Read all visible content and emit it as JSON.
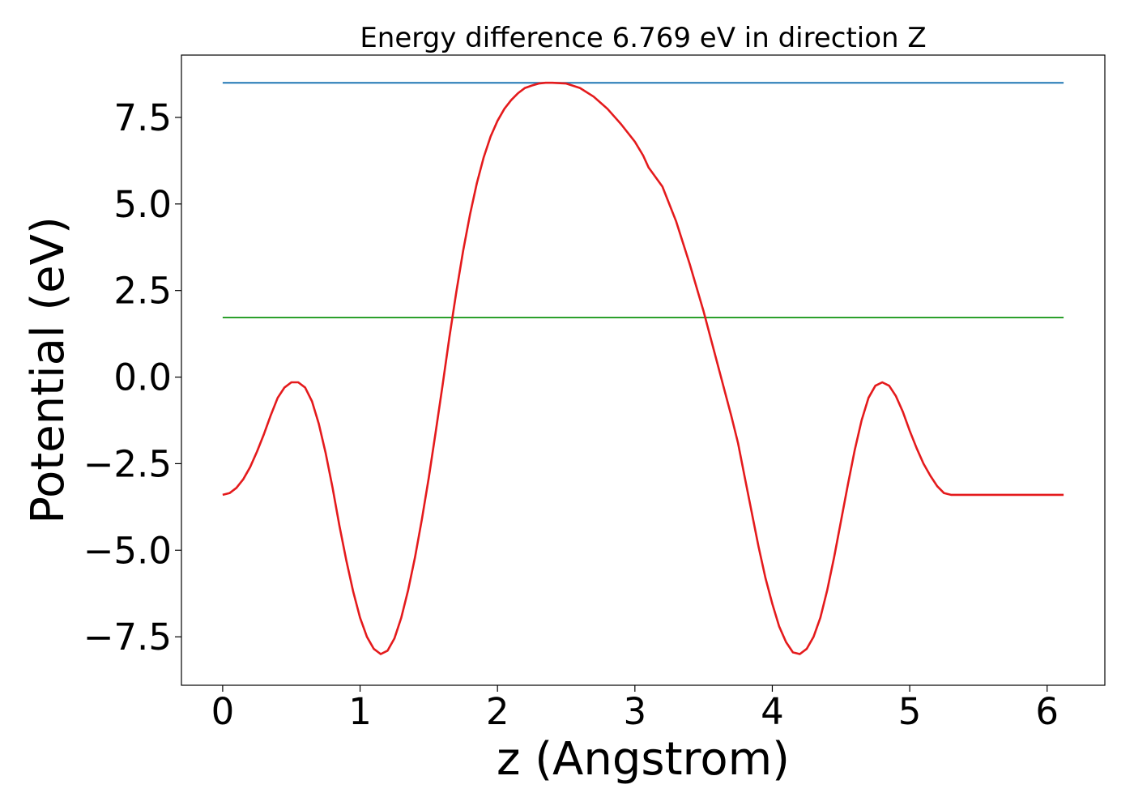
{
  "chart_data": {
    "type": "line",
    "title": "Energy difference 6.769 eV in direction Z",
    "xlabel": "z (Angstrom)",
    "ylabel": "Potential (eV)",
    "xlim": [
      -0.3,
      6.42
    ],
    "ylim": [
      -8.9,
      9.3
    ],
    "xticks": [
      0,
      1,
      2,
      3,
      4,
      5,
      6
    ],
    "xtick_labels": [
      "0",
      "1",
      "2",
      "3",
      "4",
      "5",
      "6"
    ],
    "yticks": [
      -7.5,
      -5.0,
      -2.5,
      0.0,
      2.5,
      5.0,
      7.5
    ],
    "ytick_labels": [
      "−7.5",
      "−5.0",
      "−2.5",
      "0.0",
      "2.5",
      "5.0",
      "7.5"
    ],
    "grid": false,
    "legend": "none",
    "series": [
      {
        "color": "#1f77b4",
        "x": [
          0.0,
          6.12
        ],
        "y": [
          8.5,
          8.5
        ]
      },
      {
        "color": "#2ca02c",
        "x": [
          0.0,
          6.12
        ],
        "y": [
          1.72,
          1.72
        ]
      },
      {
        "color": "#e41a1c",
        "x": [
          0.0,
          0.05,
          0.1,
          0.15,
          0.2,
          0.25,
          0.3,
          0.35,
          0.4,
          0.45,
          0.5,
          0.55,
          0.6,
          0.65,
          0.7,
          0.75,
          0.8,
          0.85,
          0.9,
          0.95,
          1.0,
          1.05,
          1.1,
          1.15,
          1.2,
          1.25,
          1.3,
          1.35,
          1.4,
          1.45,
          1.5,
          1.55,
          1.6,
          1.65,
          1.7,
          1.75,
          1.8,
          1.85,
          1.9,
          1.95,
          2.0,
          2.05,
          2.1,
          2.15,
          2.2,
          2.25,
          2.3,
          2.35,
          2.4,
          2.5,
          2.6,
          2.7,
          2.8,
          2.9,
          3.0,
          3.06,
          3.1,
          3.2,
          3.3,
          3.4,
          3.5,
          3.6,
          3.7,
          3.75,
          3.8,
          3.85,
          3.9,
          3.95,
          4.0,
          4.05,
          4.1,
          4.15,
          4.2,
          4.25,
          4.3,
          4.35,
          4.4,
          4.45,
          4.5,
          4.55,
          4.6,
          4.65,
          4.7,
          4.75,
          4.8,
          4.85,
          4.9,
          4.95,
          5.0,
          5.05,
          5.1,
          5.15,
          5.2,
          5.25,
          5.3,
          5.35,
          5.4,
          5.45,
          5.5,
          5.55,
          5.6,
          5.65,
          5.7,
          5.75,
          5.8,
          5.85,
          5.9,
          5.95,
          6.0,
          6.05,
          6.1,
          6.12
        ],
        "y": [
          -3.4,
          -3.35,
          -3.2,
          -2.95,
          -2.6,
          -2.15,
          -1.65,
          -1.1,
          -0.6,
          -0.3,
          -0.15,
          -0.15,
          -0.3,
          -0.7,
          -1.35,
          -2.2,
          -3.2,
          -4.3,
          -5.3,
          -6.2,
          -6.95,
          -7.5,
          -7.85,
          -8.0,
          -7.9,
          -7.55,
          -6.95,
          -6.15,
          -5.2,
          -4.1,
          -2.9,
          -1.6,
          -0.25,
          1.15,
          2.45,
          3.65,
          4.7,
          5.6,
          6.35,
          6.95,
          7.4,
          7.75,
          8.0,
          8.2,
          8.35,
          8.42,
          8.48,
          8.5,
          8.5,
          8.48,
          8.35,
          8.1,
          7.75,
          7.3,
          6.8,
          6.4,
          6.05,
          5.5,
          4.5,
          3.25,
          1.9,
          0.4,
          -1.1,
          -1.9,
          -2.9,
          -3.9,
          -4.9,
          -5.8,
          -6.55,
          -7.2,
          -7.65,
          -7.95,
          -8.0,
          -7.85,
          -7.5,
          -6.95,
          -6.15,
          -5.2,
          -4.15,
          -3.1,
          -2.1,
          -1.25,
          -0.6,
          -0.25,
          -0.15,
          -0.25,
          -0.55,
          -1.0,
          -1.55,
          -2.05,
          -2.5,
          -2.85,
          -3.15,
          -3.35,
          -3.4,
          -3.4,
          -3.4,
          -3.4,
          -3.4,
          -3.4,
          -3.4,
          -3.4,
          -3.4,
          -3.4,
          -3.4,
          -3.4,
          -3.4,
          -3.4,
          -3.4,
          -3.4,
          -3.4,
          -3.4
        ]
      }
    ]
  }
}
